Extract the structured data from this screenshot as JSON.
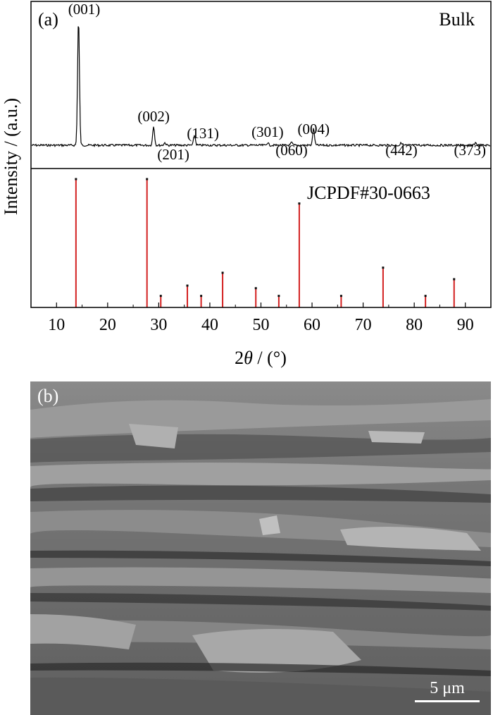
{
  "chart_data": {
    "type": "line",
    "panel_label": "(a)",
    "xlabel": "2θ / (°)",
    "xlabel_parts": {
      "pre": "2",
      "theta": "θ",
      "post": " / (°)"
    },
    "ylabel": "Intensity / (a.u.)",
    "xlim": [
      5,
      95
    ],
    "xticks": [
      10,
      20,
      30,
      40,
      50,
      60,
      70,
      80,
      90
    ],
    "sample": {
      "name": "Bulk",
      "peaks": [
        {
          "label": "(001)",
          "x": 14.3,
          "intensity": 1.0
        },
        {
          "label": "(002)",
          "x": 29.0,
          "intensity": 0.15
        },
        {
          "label": "(201)",
          "x": 31.2,
          "intensity": 0.02
        },
        {
          "label": "(131)",
          "x": 37.0,
          "intensity": 0.08
        },
        {
          "label": "(301)",
          "x": 51.3,
          "intensity": 0.02
        },
        {
          "label": "(060)",
          "x": 56.0,
          "intensity": 0.02
        },
        {
          "label": "(004)",
          "x": 60.3,
          "intensity": 0.13
        },
        {
          "label": "(442)",
          "x": 77.5,
          "intensity": 0.02
        },
        {
          "label": "(373)",
          "x": 92.0,
          "intensity": 0.02
        }
      ]
    },
    "reference": {
      "name": "JCPDF#30-0663",
      "color": "#d32020",
      "lines": [
        {
          "x": 13.8,
          "intensity": 1.0
        },
        {
          "x": 27.7,
          "intensity": 1.0
        },
        {
          "x": 30.4,
          "intensity": 0.09
        },
        {
          "x": 35.6,
          "intensity": 0.17
        },
        {
          "x": 38.3,
          "intensity": 0.09
        },
        {
          "x": 42.5,
          "intensity": 0.27
        },
        {
          "x": 49.0,
          "intensity": 0.15
        },
        {
          "x": 53.5,
          "intensity": 0.09
        },
        {
          "x": 57.5,
          "intensity": 0.81
        },
        {
          "x": 65.7,
          "intensity": 0.09
        },
        {
          "x": 73.9,
          "intensity": 0.31
        },
        {
          "x": 82.2,
          "intensity": 0.09
        },
        {
          "x": 87.8,
          "intensity": 0.22
        }
      ]
    }
  },
  "sem_image": {
    "panel_label": "(b)",
    "scale_bar_label": "5 μm"
  }
}
